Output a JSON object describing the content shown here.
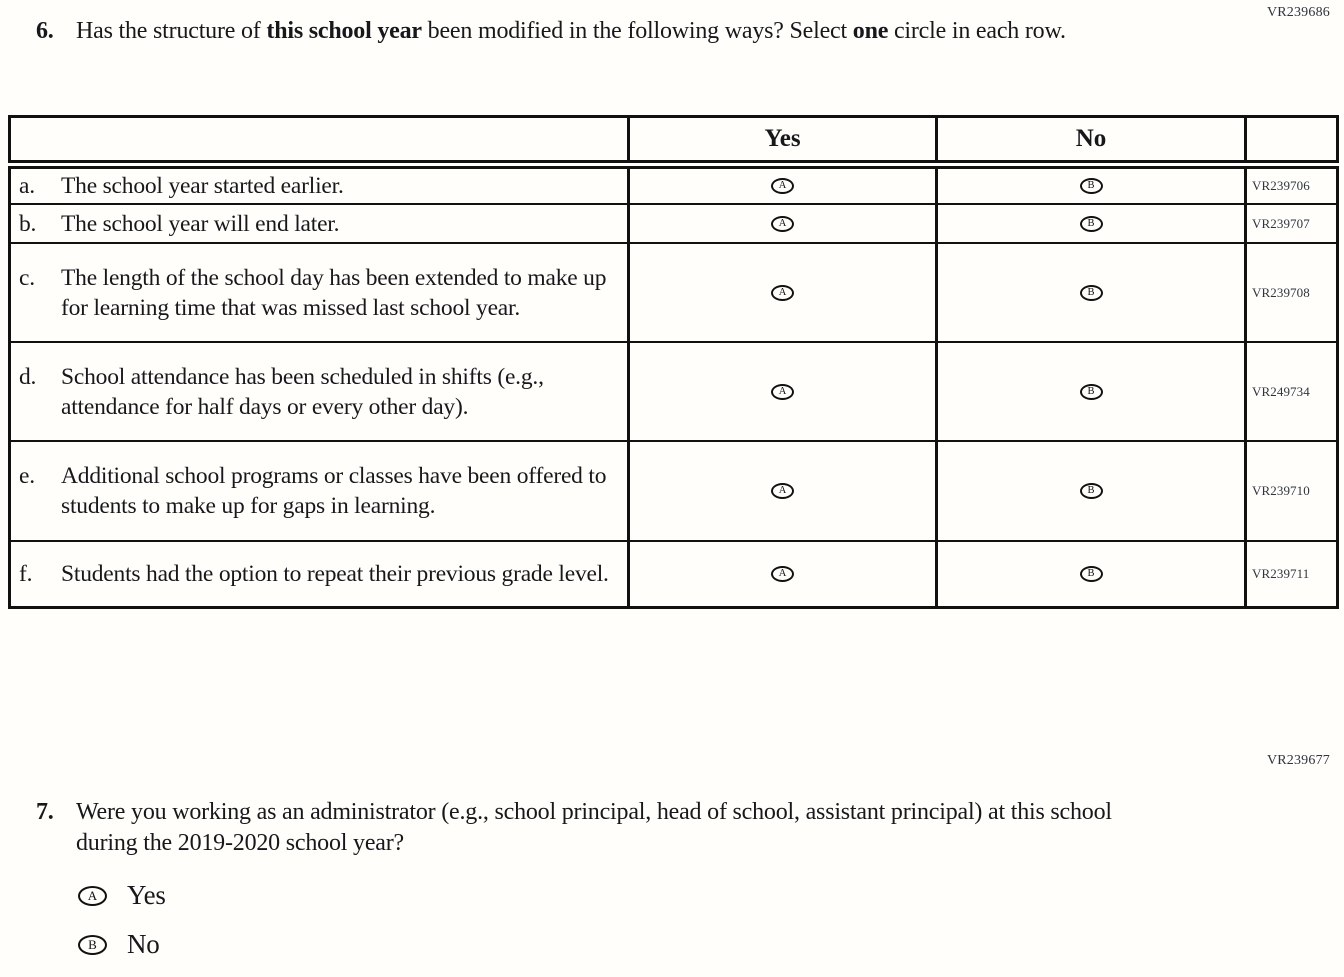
{
  "page": {
    "code_top": "VR239686",
    "code_mid": "VR239677"
  },
  "q6": {
    "number": "6.",
    "seg1": "Has the structure of ",
    "bold1": "this school year",
    "seg2": " been modified in the following ways? Select ",
    "bold2": "one",
    "seg3": " circle in each row."
  },
  "table": {
    "header_yes": "Yes",
    "header_no": "No",
    "bubble_a": "A",
    "bubble_b": "B",
    "rows": [
      {
        "letter": "a.",
        "text": "The school year started earlier.",
        "code": "VR239706"
      },
      {
        "letter": "b.",
        "text": "The school year will end later.",
        "code": "VR239707"
      },
      {
        "letter": "c.",
        "text": "The length of the school day has been extended to make up for learning time that was missed last school year.",
        "code": "VR239708"
      },
      {
        "letter": "d.",
        "text": "School attendance has been scheduled in shifts (e.g., attendance for half days or every other day).",
        "code": "VR249734"
      },
      {
        "letter": "e.",
        "text": "Additional school programs or classes have been offered to students to make up for gaps in learning.",
        "code": "VR239710"
      },
      {
        "letter": "f.",
        "text": "Students had the option to repeat their previous grade level.",
        "code": "VR239711"
      }
    ]
  },
  "q7": {
    "number": "7.",
    "text": "Were you working as an administrator (e.g., school principal, head of school, assistant principal) at this school during the 2019-2020 school year?",
    "options": [
      {
        "letter": "A",
        "label": "Yes"
      },
      {
        "letter": "B",
        "label": "No"
      }
    ]
  }
}
